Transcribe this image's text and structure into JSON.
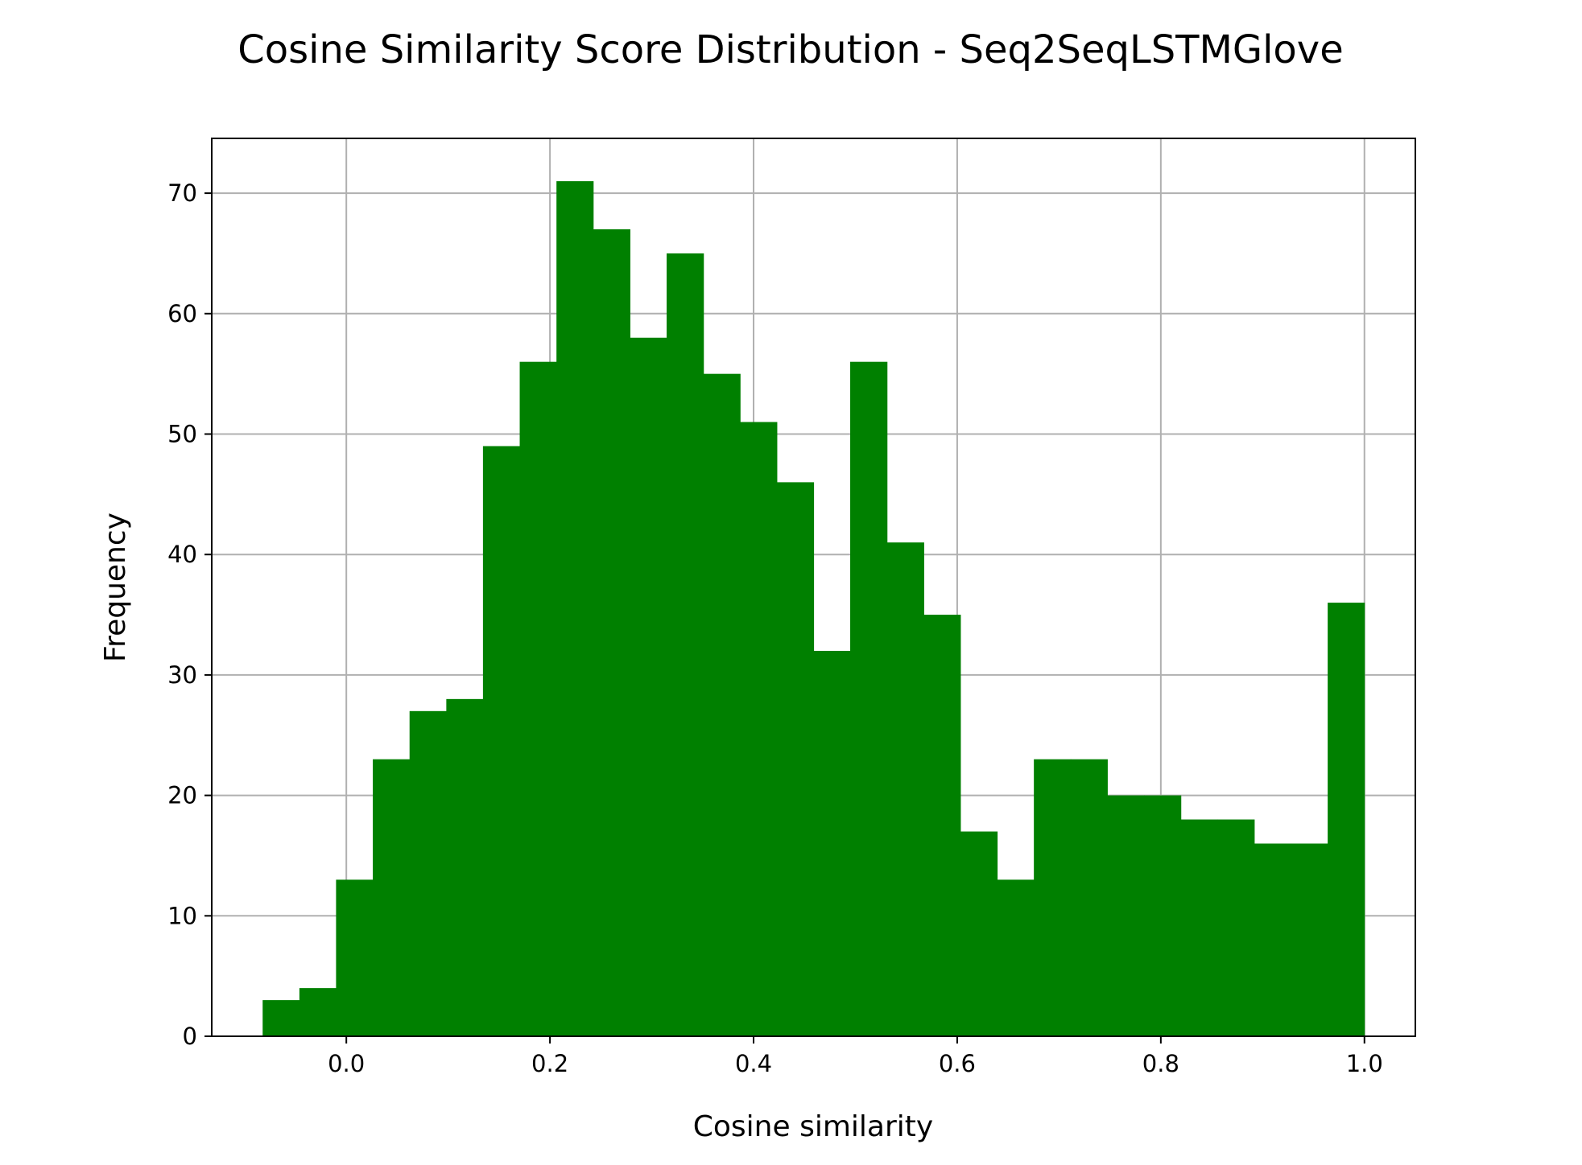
{
  "chart_data": {
    "type": "bar",
    "title": "Cosine Similarity Score Distribution - Seq2SeqLSTMGlove",
    "xlabel": "Cosine similarity",
    "ylabel": "Frequency",
    "bin_edges": [
      -0.0822,
      -0.0461,
      -0.0101,
      0.026,
      0.0621,
      0.0982,
      0.1342,
      0.1703,
      0.2064,
      0.2424,
      0.2785,
      0.3146,
      0.3507,
      0.3867,
      0.4228,
      0.4589,
      0.4949,
      0.531,
      0.5671,
      0.6031,
      0.6392,
      0.6753,
      0.7114,
      0.7474,
      0.7835,
      0.8196,
      0.8556,
      0.8917,
      0.9278,
      0.9639,
      0.9999
    ],
    "values": [
      3,
      4,
      13,
      23,
      27,
      28,
      49,
      56,
      71,
      67,
      58,
      65,
      55,
      51,
      46,
      32,
      56,
      41,
      35,
      17,
      13,
      23,
      23,
      20,
      20,
      18,
      18,
      16,
      16,
      36
    ],
    "xlim": [
      -0.1322,
      1.05
    ],
    "ylim": [
      0,
      74.55
    ],
    "x_ticks": [
      "0.0",
      "0.2",
      "0.4",
      "0.6",
      "0.8",
      "1.0"
    ],
    "y_ticks": [
      "0",
      "10",
      "20",
      "30",
      "40",
      "50",
      "60",
      "70"
    ],
    "grid": true,
    "bar_color": "#008000",
    "grid_color": "#b0b0b0"
  }
}
